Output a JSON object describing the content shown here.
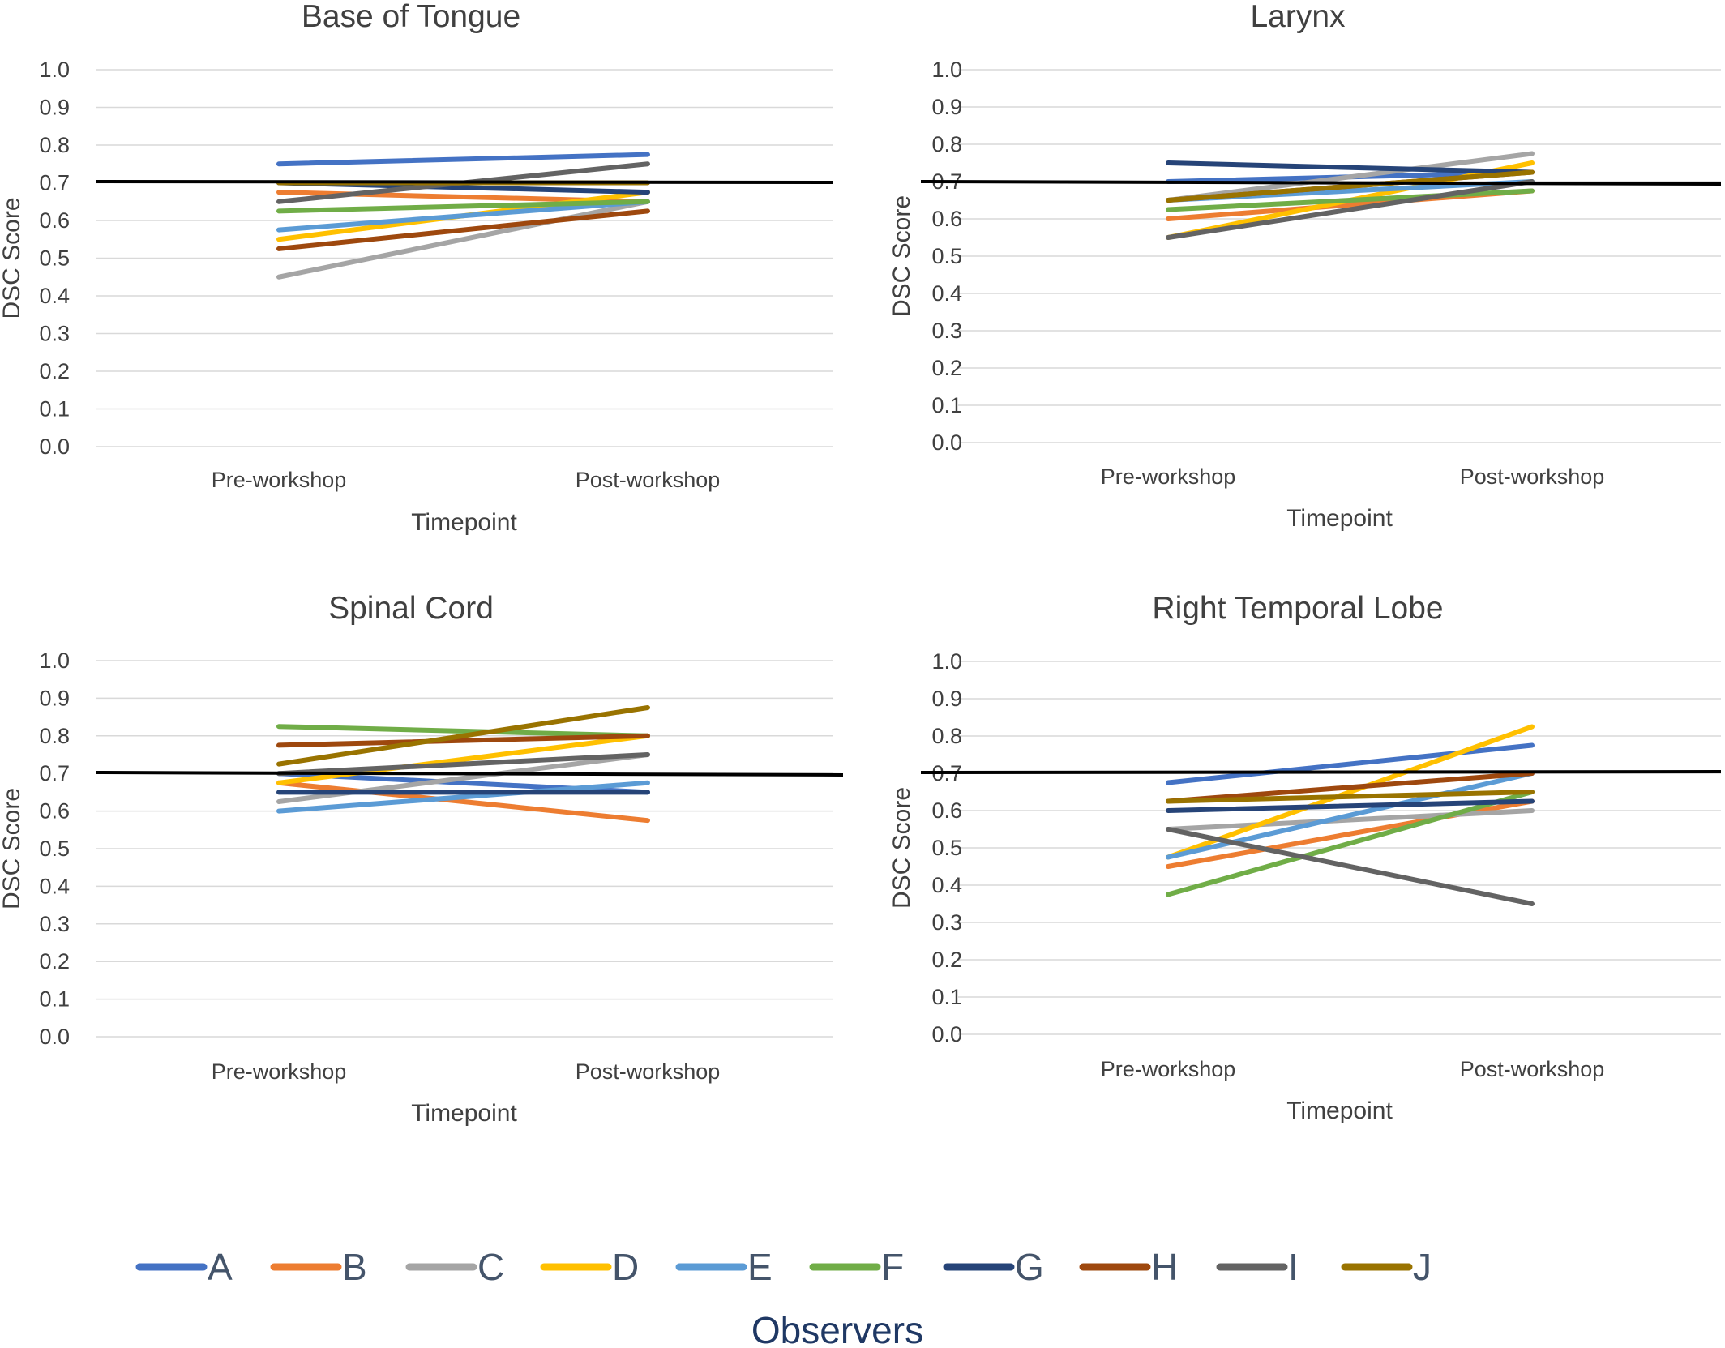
{
  "chart_data": [
    {
      "type": "line",
      "title": "Base of Tongue",
      "xlabel": "Timepoint",
      "ylabel": "DSC Score",
      "ylim": [
        0,
        1
      ],
      "yticks": [
        "0.0",
        "0.1",
        "0.2",
        "0.3",
        "0.4",
        "0.5",
        "0.6",
        "0.7",
        "0.8",
        "0.9",
        "1.0"
      ],
      "categories": [
        "Pre-workshop",
        "Post-workshop"
      ],
      "reference_line": 0.7,
      "series": [
        {
          "name": "A",
          "values": [
            0.75,
            0.775
          ]
        },
        {
          "name": "B",
          "values": [
            0.675,
            0.65
          ]
        },
        {
          "name": "C",
          "values": [
            0.45,
            0.65
          ]
        },
        {
          "name": "D",
          "values": [
            0.55,
            0.675
          ]
        },
        {
          "name": "E",
          "values": [
            0.575,
            0.65
          ]
        },
        {
          "name": "F",
          "values": [
            0.625,
            0.65
          ]
        },
        {
          "name": "G",
          "values": [
            0.7,
            0.675
          ]
        },
        {
          "name": "H",
          "values": [
            0.525,
            0.625
          ]
        },
        {
          "name": "I",
          "values": [
            0.65,
            0.75
          ]
        },
        {
          "name": "J",
          "values": [
            0.7,
            0.7
          ]
        }
      ]
    },
    {
      "type": "line",
      "title": "Larynx",
      "xlabel": "Timepoint",
      "ylabel": "DSC Score",
      "ylim": [
        0,
        1
      ],
      "yticks": [
        "0.0",
        "0.1",
        "0.2",
        "0.3",
        "0.4",
        "0.5",
        "0.6",
        "0.7",
        "0.8",
        "0.9",
        "1.0"
      ],
      "categories": [
        "Pre-workshop",
        "Post-workshop"
      ],
      "reference_line": 0.7,
      "series": [
        {
          "name": "A",
          "values": [
            0.7,
            0.725
          ]
        },
        {
          "name": "B",
          "values": [
            0.6,
            0.675
          ]
        },
        {
          "name": "C",
          "values": [
            0.65,
            0.775
          ]
        },
        {
          "name": "D",
          "values": [
            0.55,
            0.75
          ]
        },
        {
          "name": "E",
          "values": [
            0.65,
            0.7
          ]
        },
        {
          "name": "F",
          "values": [
            0.625,
            0.675
          ]
        },
        {
          "name": "G",
          "values": [
            0.75,
            0.725
          ]
        },
        {
          "name": "H",
          "values": [
            0.65,
            0.725
          ]
        },
        {
          "name": "I",
          "values": [
            0.55,
            0.7
          ]
        },
        {
          "name": "J",
          "values": [
            0.65,
            0.725
          ]
        }
      ]
    },
    {
      "type": "line",
      "title": "Spinal Cord",
      "xlabel": "Timepoint",
      "ylabel": "DSC Score",
      "ylim": [
        0,
        1
      ],
      "yticks": [
        "0.0",
        "0.1",
        "0.2",
        "0.3",
        "0.4",
        "0.5",
        "0.6",
        "0.7",
        "0.8",
        "0.9",
        "1.0"
      ],
      "categories": [
        "Pre-workshop",
        "Post-workshop"
      ],
      "reference_line": 0.7,
      "series": [
        {
          "name": "A",
          "values": [
            0.7,
            0.65
          ]
        },
        {
          "name": "B",
          "values": [
            0.675,
            0.575
          ]
        },
        {
          "name": "C",
          "values": [
            0.625,
            0.75
          ]
        },
        {
          "name": "D",
          "values": [
            0.675,
            0.8
          ]
        },
        {
          "name": "E",
          "values": [
            0.6,
            0.675
          ]
        },
        {
          "name": "F",
          "values": [
            0.825,
            0.8
          ]
        },
        {
          "name": "G",
          "values": [
            0.65,
            0.65
          ]
        },
        {
          "name": "H",
          "values": [
            0.775,
            0.8
          ]
        },
        {
          "name": "I",
          "values": [
            0.7,
            0.75
          ]
        },
        {
          "name": "J",
          "values": [
            0.725,
            0.875
          ]
        }
      ]
    },
    {
      "type": "line",
      "title": "Right Temporal Lobe",
      "xlabel": "Timepoint",
      "ylabel": "DSC Score",
      "ylim": [
        0,
        1
      ],
      "yticks": [
        "0.0",
        "0.1",
        "0.2",
        "0.3",
        "0.4",
        "0.5",
        "0.6",
        "0.7",
        "0.8",
        "0.9",
        "1.0"
      ],
      "categories": [
        "Pre-workshop",
        "Post-workshop"
      ],
      "reference_line": 0.7,
      "series": [
        {
          "name": "A",
          "values": [
            0.675,
            0.775
          ]
        },
        {
          "name": "B",
          "values": [
            0.45,
            0.625
          ]
        },
        {
          "name": "C",
          "values": [
            0.55,
            0.6
          ]
        },
        {
          "name": "D",
          "values": [
            0.475,
            0.825
          ]
        },
        {
          "name": "E",
          "values": [
            0.475,
            0.7
          ]
        },
        {
          "name": "F",
          "values": [
            0.375,
            0.65
          ]
        },
        {
          "name": "G",
          "values": [
            0.6,
            0.625
          ]
        },
        {
          "name": "H",
          "values": [
            0.625,
            0.7
          ]
        },
        {
          "name": "I",
          "values": [
            0.55,
            0.35
          ]
        },
        {
          "name": "J",
          "values": [
            0.625,
            0.65
          ]
        }
      ]
    }
  ],
  "legend": {
    "title": "Observers",
    "items": [
      {
        "name": "A",
        "color": "#4472c4"
      },
      {
        "name": "B",
        "color": "#ed7d31"
      },
      {
        "name": "C",
        "color": "#a5a5a5"
      },
      {
        "name": "D",
        "color": "#ffc000"
      },
      {
        "name": "E",
        "color": "#5b9bd5"
      },
      {
        "name": "F",
        "color": "#70ad47"
      },
      {
        "name": "G",
        "color": "#264478"
      },
      {
        "name": "H",
        "color": "#9e480e"
      },
      {
        "name": "I",
        "color": "#636363"
      },
      {
        "name": "J",
        "color": "#997300"
      }
    ]
  },
  "colors": {
    "reference_line": "#000000",
    "gridline": "#d9d9d9",
    "text": "#404040"
  }
}
